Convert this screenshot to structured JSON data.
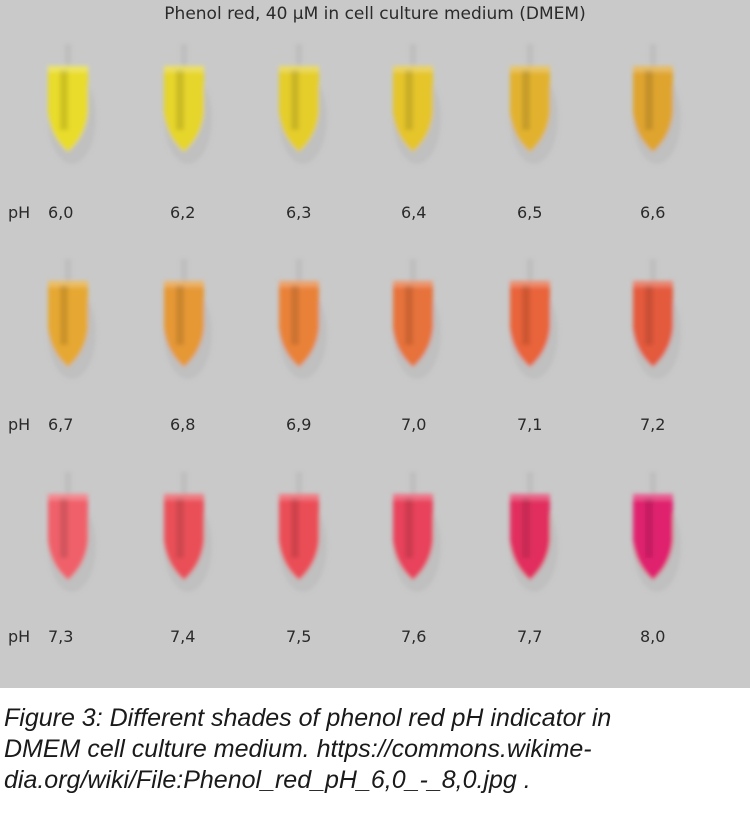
{
  "photo": {
    "title": "Phenol red, 40 µM in cell culture medium (DMEM)",
    "ph_prefix": "pH",
    "rows": [
      {
        "tubes": [
          {
            "ph": "6,0",
            "color": "#e9dc2a"
          },
          {
            "ph": "6,2",
            "color": "#e6d52b"
          },
          {
            "ph": "6,3",
            "color": "#e5ce2b"
          },
          {
            "ph": "6,4",
            "color": "#e5c52c"
          },
          {
            "ph": "6,5",
            "color": "#e2b22f"
          },
          {
            "ph": "6,6",
            "color": "#dfa42f"
          }
        ]
      },
      {
        "tubes": [
          {
            "ph": "6,7",
            "color": "#e6a830"
          },
          {
            "ph": "6,8",
            "color": "#e69835"
          },
          {
            "ph": "6,9",
            "color": "#e98238"
          },
          {
            "ph": "7,0",
            "color": "#e7723b"
          },
          {
            "ph": "7,1",
            "color": "#e9643b"
          },
          {
            "ph": "7,2",
            "color": "#e45a3c"
          }
        ]
      },
      {
        "tubes": [
          {
            "ph": "7,3",
            "color": "#f0616a"
          },
          {
            "ph": "7,4",
            "color": "#ea5058"
          },
          {
            "ph": "7,5",
            "color": "#eb4d57"
          },
          {
            "ph": "7,6",
            "color": "#e8435c"
          },
          {
            "ph": "7,7",
            "color": "#e22f5f"
          },
          {
            "ph": "8,0",
            "color": "#e0246e"
          }
        ]
      }
    ]
  },
  "caption": {
    "line1": "Figure 3: Different shades of phenol red pH indicator in",
    "line2": "DMEM cell culture medium. https://commons.wikime-",
    "line3": "dia.org/wiki/File:Phenol_red_pH_6,0_-_8,0.jpg ."
  }
}
